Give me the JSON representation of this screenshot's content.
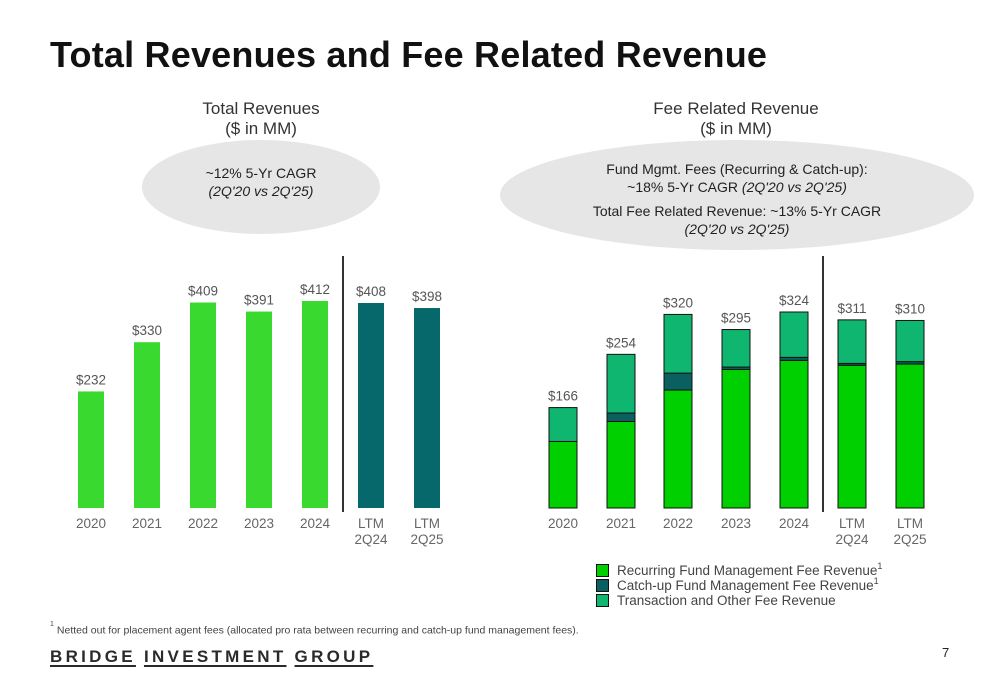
{
  "title": "Total Revenues and Fee Related Revenue",
  "left_chart": {
    "heading_line1": "Total Revenues",
    "heading_line2": "($ in MM)",
    "oval_line1": "~12% 5-Yr CAGR",
    "oval_line2": "(2Q'20 vs 2Q'25)"
  },
  "right_chart": {
    "heading_line1": "Fee Related Revenue",
    "heading_line2": "($ in MM)",
    "oval_line1": "Fund Mgmt. Fees (Recurring & Catch-up):",
    "oval_line2_a": "~18% 5-Yr CAGR ",
    "oval_line2_b": "(2Q'20 vs 2Q'25)",
    "oval_line3": "Total Fee Related Revenue: ~13% 5-Yr CAGR",
    "oval_line4": "(2Q'20 vs 2Q'25)"
  },
  "colors": {
    "bright_green": "#3ad92f",
    "dark_teal": "#06686a",
    "recurring": "#00d000",
    "catchup": "#0a5f60",
    "transaction": "#0fb66f",
    "divider": "#333333"
  },
  "chart_data": [
    {
      "type": "bar",
      "title": "Total Revenues",
      "ylabel": "($ in MM)",
      "categories": [
        "2020",
        "2021",
        "2022",
        "2023",
        "2024",
        "LTM\n2Q24",
        "LTM\n2Q25"
      ],
      "values": [
        232,
        330,
        409,
        391,
        412,
        408,
        398
      ],
      "labels": [
        "$232",
        "$330",
        "$409",
        "$391",
        "$412",
        "$408",
        "$398"
      ],
      "ylim": [
        0,
        420
      ],
      "grid": false
    },
    {
      "type": "bar",
      "stacked": true,
      "title": "Fee Related Revenue",
      "ylabel": "($ in MM)",
      "categories": [
        "2020",
        "2021",
        "2022",
        "2023",
        "2024",
        "LTM\n2Q24",
        "LTM\n2Q25"
      ],
      "series": [
        {
          "name": "Recurring Fund Management Fee Revenue",
          "values": [
            110,
            143,
            195,
            229,
            244,
            236,
            238
          ]
        },
        {
          "name": "Catch-up Fund Management Fee Revenue",
          "values": [
            0,
            14,
            28,
            4,
            5,
            3,
            4
          ]
        },
        {
          "name": "Transaction and Other Fee Revenue",
          "values": [
            56,
            97,
            97,
            62,
            75,
            72,
            68
          ]
        }
      ],
      "totals": [
        166,
        254,
        320,
        295,
        324,
        311,
        310
      ],
      "labels": [
        "$166",
        "$254",
        "$320",
        "$295",
        "$324",
        "$311",
        "$310"
      ],
      "ylim": [
        0,
        324
      ],
      "grid": false,
      "legend": "bottom"
    }
  ],
  "legend": [
    {
      "label": "Recurring Fund Management Fee Revenue",
      "sup": "1"
    },
    {
      "label": "Catch-up Fund Management Fee Revenue",
      "sup": "1"
    },
    {
      "label": "Transaction and Other Fee Revenue",
      "sup": ""
    }
  ],
  "footnote": {
    "marker": "1",
    "text": "Netted out for placement agent fees (allocated pro rata between recurring and catch-up fund management fees)."
  },
  "logo": {
    "word1": "BRIDGE",
    "word2": "INVESTMENT",
    "word3": "GROUP"
  },
  "page_number": "7"
}
